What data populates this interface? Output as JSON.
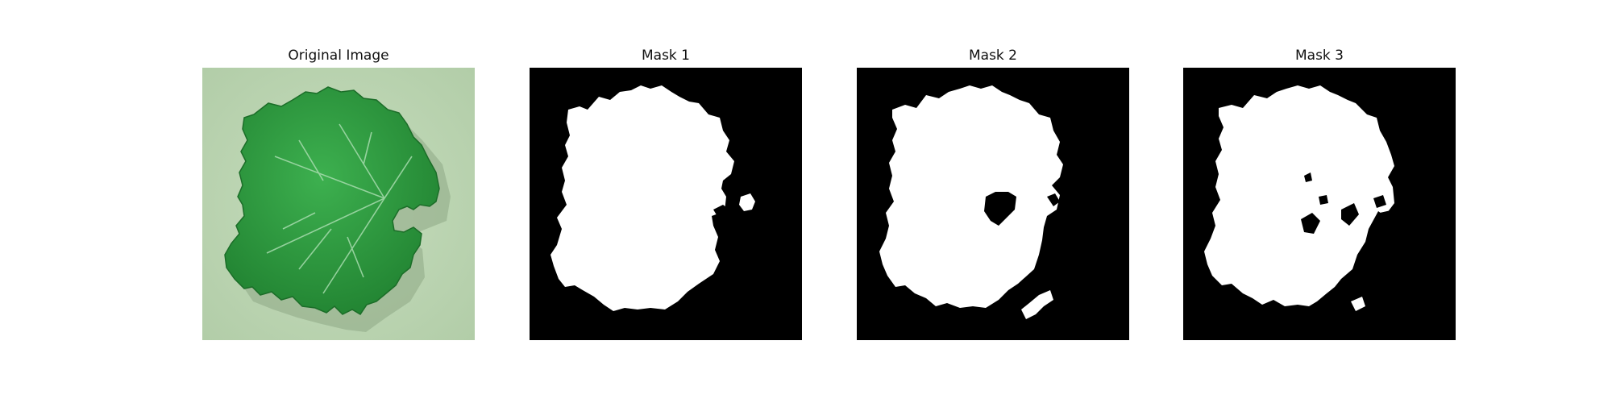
{
  "figure": {
    "panels": [
      {
        "title": "Original Image",
        "kind": "photo"
      },
      {
        "title": "Mask 1",
        "kind": "mask"
      },
      {
        "title": "Mask 2",
        "kind": "mask"
      },
      {
        "title": "Mask 3",
        "kind": "mask"
      }
    ]
  },
  "colors": {
    "page_background": "#ffffff",
    "photo_background": "#bdd6b3",
    "leaf": "#2c9a3e",
    "leaf_vein": "#a7dcae",
    "mask_background": "#000000",
    "mask_foreground": "#ffffff"
  }
}
